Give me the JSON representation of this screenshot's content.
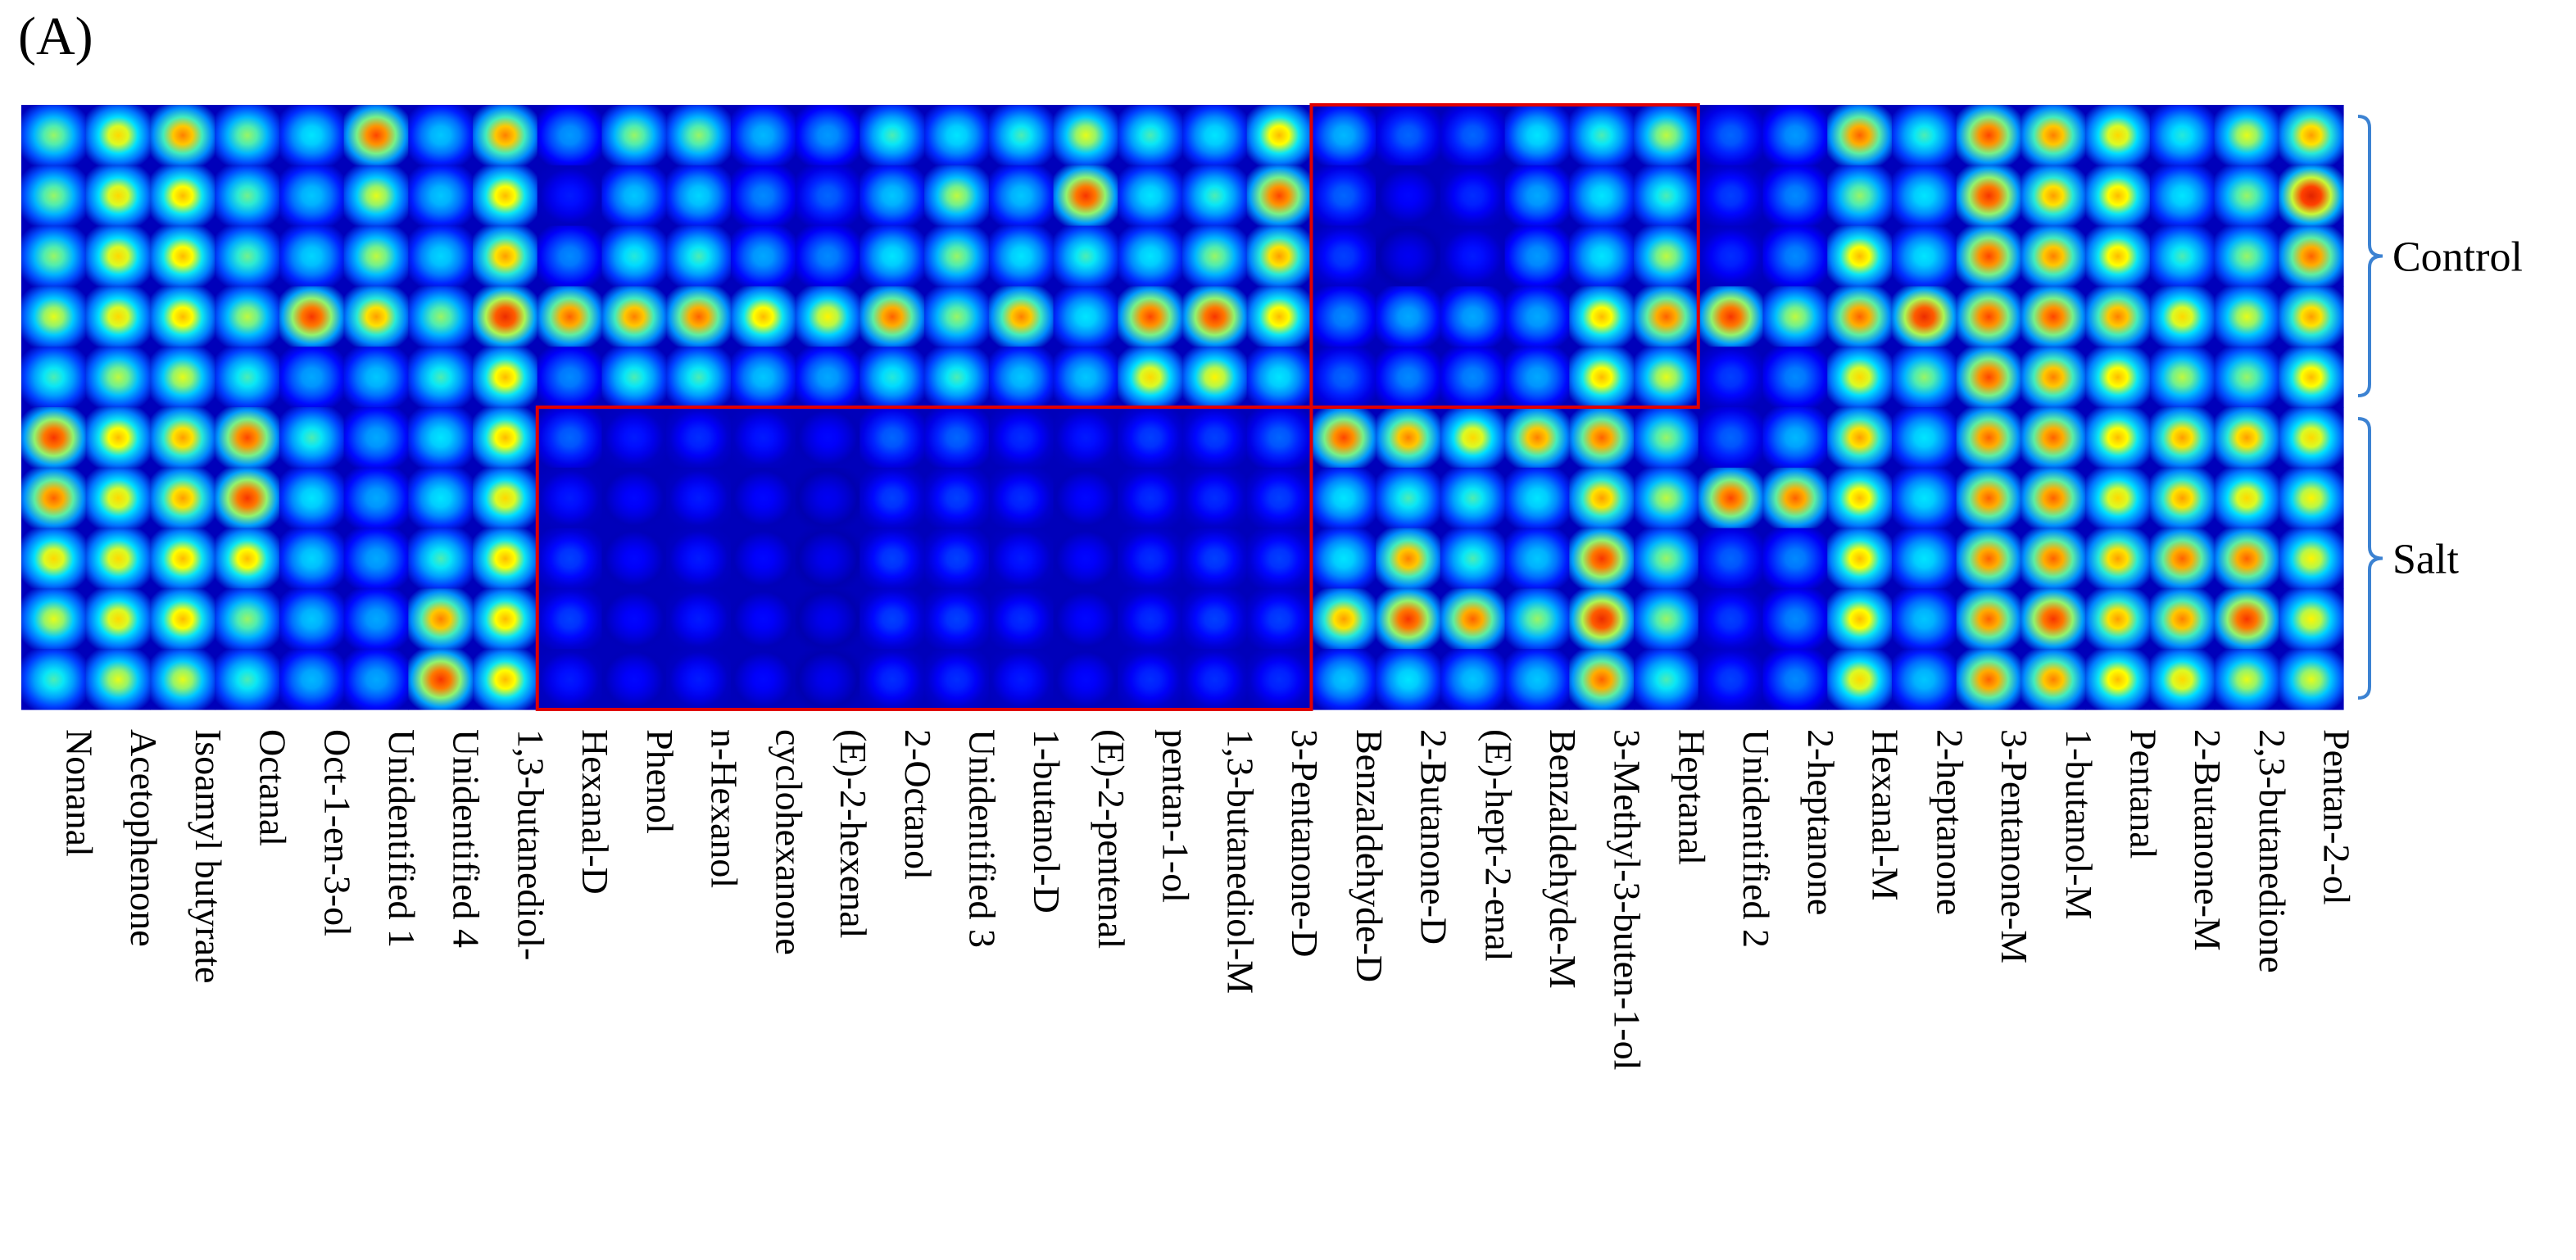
{
  "panel_label": "(A)",
  "chart_data": {
    "type": "heatmap",
    "title": "",
    "compounds": [
      "Nonanal",
      "Acetophenone",
      "Isoamyl butyrate",
      "Octanal",
      "Oct-1-en-3-ol",
      "Unidentified 1",
      "Unidentified 4",
      "1,3-butanediol-",
      "Hexanal-D",
      "Phenol",
      "n-Hexanol",
      "cyclohexanone",
      "(E)-2-hexenal",
      "2-Octanol",
      "Unidentified 3",
      "1-butanol-D",
      "(E)-2-pentenal",
      "pentan-1-ol",
      "1,3-butanediol-M",
      "3-Pentanone-D",
      "Benzaldehyde-D",
      "2-Butanone-D",
      "(E)-hept-2-enal",
      "Benzaldehyde-M",
      "3-Methyl-3-buten-1-ol",
      "Heptanal",
      "Unidentified 2",
      "2-heptanone",
      "Hexanal-M",
      "2-heptanone",
      "3-Pentanone-M",
      "1-butanol-M",
      "Pentanal",
      "2-Butanone-M",
      "2,3-butanedione",
      "Pentan-2-ol"
    ],
    "groups": [
      {
        "name": "Control",
        "samples": 5
      },
      {
        "name": "Salt",
        "samples": 5
      }
    ],
    "intensity": [
      [
        0.6,
        0.7,
        0.78,
        0.6,
        0.5,
        0.82,
        0.45,
        0.78,
        0.38,
        0.6,
        0.6,
        0.42,
        0.38,
        0.55,
        0.5,
        0.55,
        0.65,
        0.55,
        0.5,
        0.72,
        0.42,
        0.3,
        0.3,
        0.5,
        0.55,
        0.62,
        0.3,
        0.38,
        0.8,
        0.55,
        0.82,
        0.78,
        0.7,
        0.52,
        0.65,
        0.75
      ],
      [
        0.6,
        0.7,
        0.72,
        0.58,
        0.45,
        0.65,
        0.45,
        0.72,
        0.2,
        0.45,
        0.48,
        0.35,
        0.3,
        0.45,
        0.62,
        0.45,
        0.85,
        0.5,
        0.55,
        0.82,
        0.3,
        0.18,
        0.22,
        0.4,
        0.5,
        0.55,
        0.25,
        0.35,
        0.6,
        0.5,
        0.85,
        0.75,
        0.72,
        0.5,
        0.6,
        0.9
      ],
      [
        0.6,
        0.7,
        0.72,
        0.58,
        0.48,
        0.62,
        0.48,
        0.75,
        0.35,
        0.52,
        0.55,
        0.4,
        0.35,
        0.5,
        0.6,
        0.5,
        0.55,
        0.5,
        0.6,
        0.75,
        0.25,
        0.15,
        0.2,
        0.38,
        0.5,
        0.62,
        0.22,
        0.35,
        0.72,
        0.5,
        0.82,
        0.78,
        0.72,
        0.55,
        0.6,
        0.8
      ],
      [
        0.65,
        0.7,
        0.72,
        0.62,
        0.85,
        0.75,
        0.6,
        0.88,
        0.8,
        0.78,
        0.8,
        0.72,
        0.68,
        0.8,
        0.6,
        0.78,
        0.5,
        0.82,
        0.85,
        0.72,
        0.35,
        0.4,
        0.4,
        0.4,
        0.72,
        0.8,
        0.85,
        0.62,
        0.8,
        0.88,
        0.82,
        0.82,
        0.78,
        0.7,
        0.65,
        0.75
      ],
      [
        0.55,
        0.62,
        0.65,
        0.55,
        0.4,
        0.45,
        0.55,
        0.72,
        0.35,
        0.55,
        0.55,
        0.45,
        0.4,
        0.52,
        0.55,
        0.45,
        0.45,
        0.7,
        0.68,
        0.5,
        0.3,
        0.35,
        0.35,
        0.4,
        0.72,
        0.65,
        0.25,
        0.35,
        0.7,
        0.6,
        0.82,
        0.78,
        0.72,
        0.62,
        0.6,
        0.72
      ],
      [
        0.85,
        0.72,
        0.75,
        0.82,
        0.55,
        0.4,
        0.5,
        0.72,
        0.3,
        0.2,
        0.22,
        0.2,
        0.18,
        0.3,
        0.3,
        0.22,
        0.2,
        0.25,
        0.25,
        0.3,
        0.82,
        0.78,
        0.7,
        0.78,
        0.8,
        0.6,
        0.3,
        0.42,
        0.75,
        0.5,
        0.8,
        0.8,
        0.72,
        0.75,
        0.75,
        0.7
      ],
      [
        0.8,
        0.7,
        0.75,
        0.85,
        0.5,
        0.4,
        0.5,
        0.7,
        0.2,
        0.18,
        0.2,
        0.18,
        0.16,
        0.25,
        0.25,
        0.22,
        0.18,
        0.22,
        0.22,
        0.25,
        0.5,
        0.55,
        0.55,
        0.5,
        0.75,
        0.62,
        0.82,
        0.8,
        0.72,
        0.5,
        0.8,
        0.8,
        0.7,
        0.75,
        0.7,
        0.68
      ],
      [
        0.7,
        0.7,
        0.72,
        0.72,
        0.48,
        0.4,
        0.55,
        0.72,
        0.25,
        0.18,
        0.2,
        0.18,
        0.16,
        0.25,
        0.25,
        0.2,
        0.18,
        0.22,
        0.25,
        0.25,
        0.5,
        0.78,
        0.55,
        0.45,
        0.85,
        0.6,
        0.3,
        0.35,
        0.72,
        0.5,
        0.8,
        0.8,
        0.75,
        0.8,
        0.8,
        0.68
      ],
      [
        0.65,
        0.7,
        0.72,
        0.6,
        0.45,
        0.4,
        0.78,
        0.72,
        0.25,
        0.18,
        0.2,
        0.18,
        0.16,
        0.25,
        0.25,
        0.22,
        0.18,
        0.22,
        0.25,
        0.25,
        0.75,
        0.85,
        0.8,
        0.6,
        0.88,
        0.6,
        0.25,
        0.35,
        0.72,
        0.45,
        0.8,
        0.85,
        0.75,
        0.78,
        0.85,
        0.68
      ],
      [
        0.55,
        0.65,
        0.65,
        0.55,
        0.42,
        0.4,
        0.85,
        0.72,
        0.2,
        0.18,
        0.2,
        0.18,
        0.16,
        0.22,
        0.22,
        0.2,
        0.18,
        0.22,
        0.22,
        0.22,
        0.45,
        0.5,
        0.45,
        0.45,
        0.8,
        0.55,
        0.25,
        0.35,
        0.7,
        0.45,
        0.8,
        0.78,
        0.72,
        0.7,
        0.65,
        0.65
      ]
    ],
    "color_scale": [
      "#00007a",
      "#0000ff",
      "#0080ff",
      "#00e5ff",
      "#ffff00",
      "#ff3a00",
      "#b40000"
    ],
    "highlight_boxes": [
      {
        "rows": [
          0,
          4
        ],
        "cols": [
          20,
          25
        ],
        "color": "#e00000"
      },
      {
        "rows": [
          5,
          9
        ],
        "cols": [
          8,
          19
        ],
        "color": "#e00000"
      }
    ],
    "bracket_color": "#3c82d2",
    "legend": "none",
    "grid": false
  }
}
